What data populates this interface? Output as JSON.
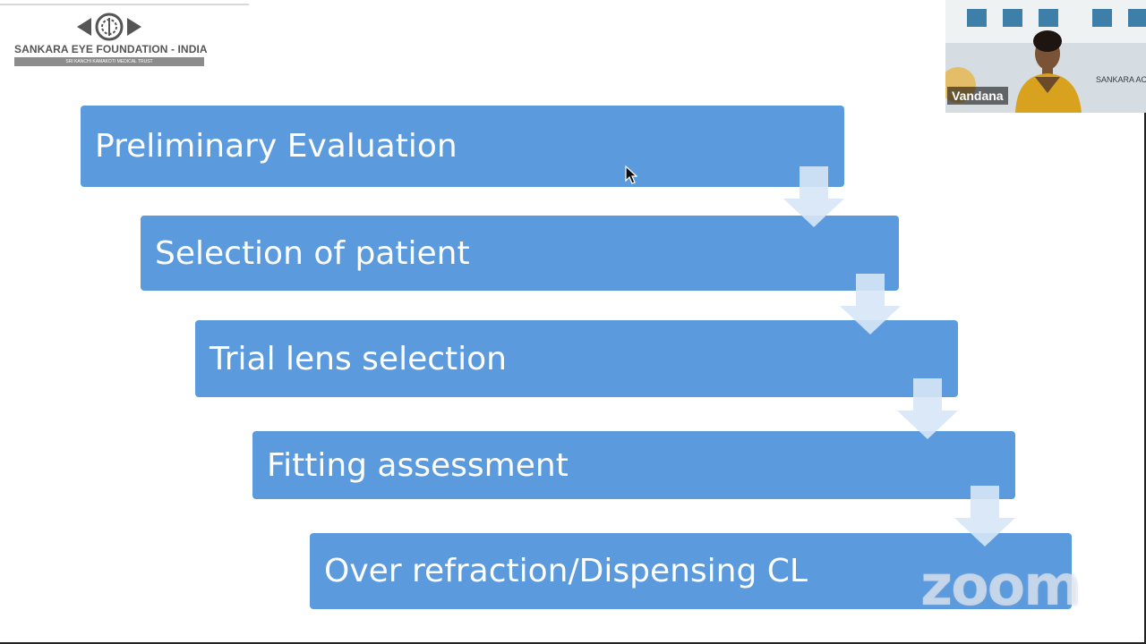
{
  "slide": {
    "logo": {
      "name": "SANKARA EYE FOUNDATION - INDIA",
      "subtitle": "SRI KANCHI KAMAKOTI MEDICAL TRUST"
    },
    "steps": [
      {
        "label": "Preliminary Evaluation"
      },
      {
        "label": "Selection of patient"
      },
      {
        "label": "Trial lens selection"
      },
      {
        "label": "Fitting assessment"
      },
      {
        "label": "Over refraction/Dispensing CL"
      }
    ],
    "colors": {
      "step_fill": "#5b9bdd",
      "arrow_fill": "#d6e6f6"
    }
  },
  "watermark": {
    "text": "zoom"
  },
  "participant": {
    "name": "Vandana",
    "background_text": "SANKARA ACA OF VISION"
  }
}
